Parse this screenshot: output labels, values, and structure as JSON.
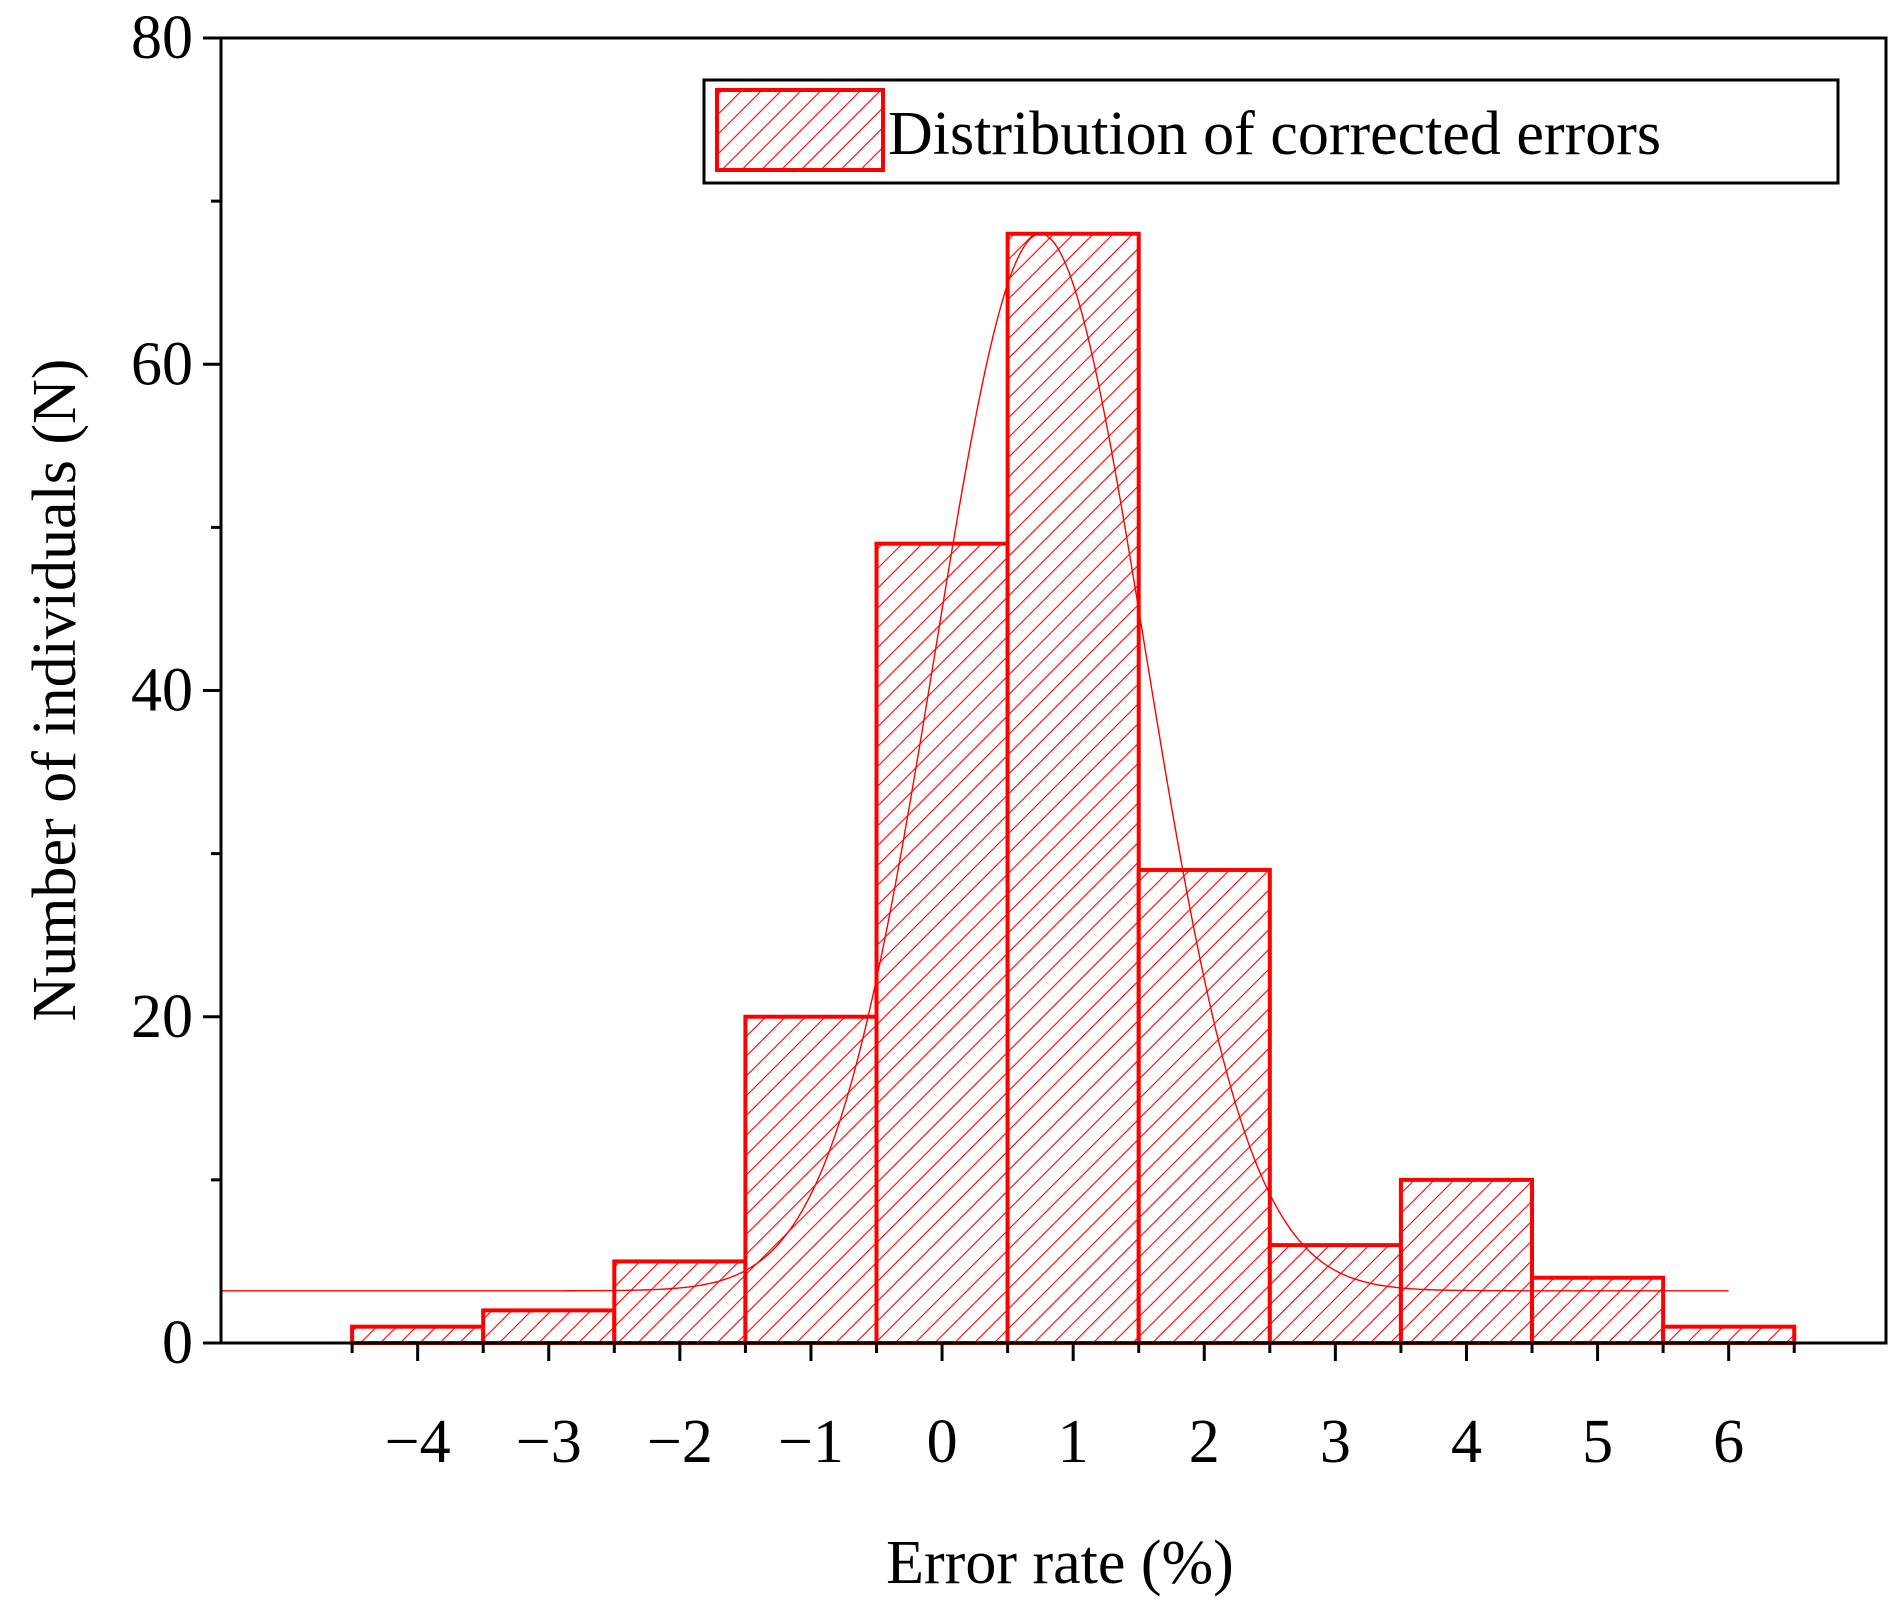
{
  "colors": {
    "bar": "#ff0000",
    "axis": "#000000",
    "background": "#ffffff"
  },
  "chart_data": {
    "type": "bar",
    "subtype": "histogram-with-fit-curve",
    "xlabel": "Error rate (%)",
    "ylabel": "Number of individuals (N)",
    "x_ticks": [
      "−4",
      "−3",
      "−2",
      "−1",
      "0",
      "1",
      "2",
      "3",
      "4",
      "5",
      "6"
    ],
    "y_ticks": [
      "0",
      "20",
      "40",
      "60",
      "80"
    ],
    "xlim": [
      -5.5,
      7.2
    ],
    "ylim": [
      0,
      80
    ],
    "bins": [
      {
        "x0": -4.5,
        "x1": -3.5,
        "value": 1
      },
      {
        "x0": -3.5,
        "x1": -2.5,
        "value": 2
      },
      {
        "x0": -2.5,
        "x1": -1.5,
        "value": 5
      },
      {
        "x0": -1.5,
        "x1": -0.5,
        "value": 20
      },
      {
        "x0": -0.5,
        "x1": 0.5,
        "value": 49
      },
      {
        "x0": 0.5,
        "x1": 1.5,
        "value": 68
      },
      {
        "x0": 1.5,
        "x1": 2.5,
        "value": 29
      },
      {
        "x0": 2.5,
        "x1": 3.5,
        "value": 6
      },
      {
        "x0": 3.5,
        "x1": 4.5,
        "value": 10
      },
      {
        "x0": 4.5,
        "x1": 5.5,
        "value": 4
      },
      {
        "x0": 5.5,
        "x1": 6.5,
        "value": 1
      }
    ],
    "fit_curve": {
      "type": "gaussian",
      "baseline": 3.2,
      "amplitude": 64.8,
      "center": 0.75,
      "sigma": 0.8,
      "x_range": [
        -5.5,
        6.0
      ]
    },
    "legend": {
      "position": "top-right",
      "entries": [
        "Distribution of corrected errors"
      ]
    },
    "grid": false
  }
}
